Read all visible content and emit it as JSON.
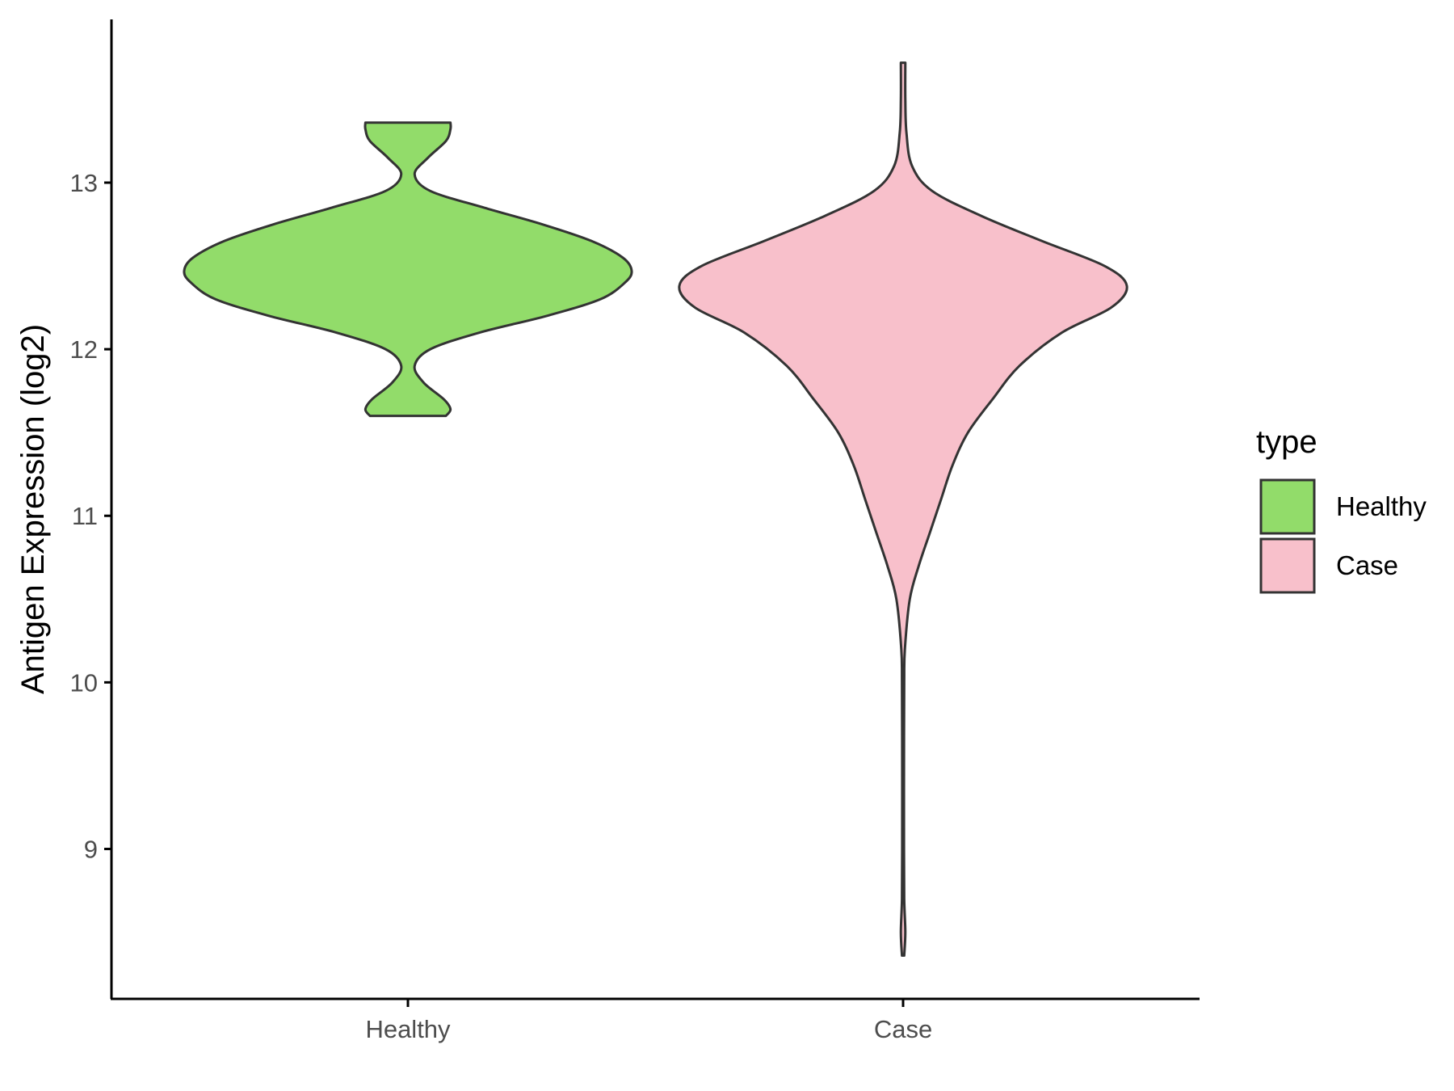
{
  "chart_data": {
    "type": "violin",
    "ylabel": "Antigen Expression (log2)",
    "xlabel": "",
    "ylim": [
      8.1,
      13.98
    ],
    "yticks": [
      9,
      10,
      11,
      12,
      13
    ],
    "categories": [
      "Healthy",
      "Case"
    ],
    "grid": false,
    "legend": {
      "title": "type",
      "position": "right",
      "items": [
        {
          "label": "Healthy",
          "color": "#92dc6a"
        },
        {
          "label": "Case",
          "color": "#f8c0cb"
        }
      ]
    },
    "series": [
      {
        "name": "Healthy",
        "color": "#92dc6a",
        "range": [
          11.6,
          13.36
        ],
        "density": [
          [
            11.6,
            0.17
          ],
          [
            11.64,
            0.19
          ],
          [
            11.7,
            0.16
          ],
          [
            11.8,
            0.07
          ],
          [
            11.9,
            0.03
          ],
          [
            12.0,
            0.1
          ],
          [
            12.1,
            0.32
          ],
          [
            12.2,
            0.62
          ],
          [
            12.3,
            0.86
          ],
          [
            12.4,
            0.97
          ],
          [
            12.47,
            1.0
          ],
          [
            12.55,
            0.96
          ],
          [
            12.65,
            0.82
          ],
          [
            12.75,
            0.6
          ],
          [
            12.85,
            0.34
          ],
          [
            12.95,
            0.1
          ],
          [
            13.05,
            0.03
          ],
          [
            13.15,
            0.09
          ],
          [
            13.25,
            0.17
          ],
          [
            13.32,
            0.19
          ],
          [
            13.36,
            0.19
          ]
        ]
      },
      {
        "name": "Case",
        "color": "#f8c0cb",
        "range": [
          8.36,
          13.72
        ],
        "density": [
          [
            8.36,
            0.005
          ],
          [
            8.5,
            0.01
          ],
          [
            8.7,
            0.005
          ],
          [
            9.0,
            0.004
          ],
          [
            9.5,
            0.004
          ],
          [
            10.0,
            0.005
          ],
          [
            10.2,
            0.008
          ],
          [
            10.5,
            0.03
          ],
          [
            10.7,
            0.07
          ],
          [
            10.9,
            0.12
          ],
          [
            11.1,
            0.17
          ],
          [
            11.3,
            0.22
          ],
          [
            11.5,
            0.29
          ],
          [
            11.7,
            0.4
          ],
          [
            11.9,
            0.52
          ],
          [
            12.1,
            0.71
          ],
          [
            12.25,
            0.93
          ],
          [
            12.38,
            1.0
          ],
          [
            12.5,
            0.9
          ],
          [
            12.65,
            0.62
          ],
          [
            12.8,
            0.35
          ],
          [
            12.95,
            0.13
          ],
          [
            13.1,
            0.04
          ],
          [
            13.3,
            0.015
          ],
          [
            13.5,
            0.01
          ],
          [
            13.72,
            0.01
          ]
        ]
      }
    ]
  }
}
